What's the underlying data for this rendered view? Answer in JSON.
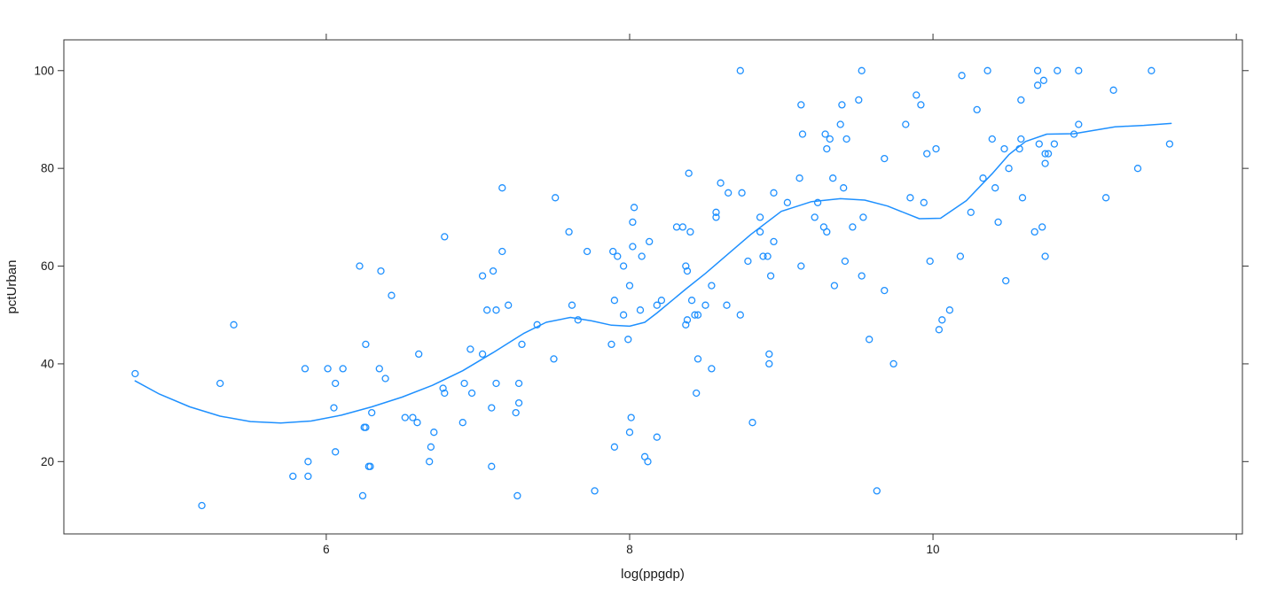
{
  "chart_data": {
    "type": "scatter",
    "title": "",
    "xlabel": "log(ppgdp)",
    "ylabel": "pctUrban",
    "xlim": [
      4.27,
      12.04
    ],
    "ylim": [
      5.2,
      106.3
    ],
    "grid": false,
    "legend": "none",
    "marker": {
      "shape": "open-circle",
      "color": "#1E90FF",
      "radius": 3.5
    },
    "smooth_line_color": "#1E90FF",
    "axis_color": "#333333",
    "xticks": [
      {
        "v": 6,
        "label": "6"
      },
      {
        "v": 8,
        "label": "8"
      },
      {
        "v": 10,
        "label": "10"
      },
      {
        "v": 12,
        "label": ""
      }
    ],
    "yticks": [
      {
        "v": 20,
        "label": "20"
      },
      {
        "v": 40,
        "label": "40"
      },
      {
        "v": 60,
        "label": "60"
      },
      {
        "v": 80,
        "label": "80"
      },
      {
        "v": 100,
        "label": "100"
      }
    ],
    "mirror_ticks_top_right": true,
    "points": [
      [
        4.74,
        38
      ],
      [
        5.18,
        11
      ],
      [
        5.3,
        36
      ],
      [
        5.39,
        48
      ],
      [
        5.78,
        17
      ],
      [
        5.86,
        39
      ],
      [
        5.88,
        17
      ],
      [
        5.88,
        20
      ],
      [
        6.01,
        39
      ],
      [
        6.05,
        31
      ],
      [
        6.06,
        22
      ],
      [
        6.06,
        36
      ],
      [
        6.11,
        39
      ],
      [
        6.22,
        60
      ],
      [
        6.24,
        13
      ],
      [
        6.25,
        27
      ],
      [
        6.26,
        27
      ],
      [
        6.26,
        44
      ],
      [
        6.28,
        19
      ],
      [
        6.29,
        19
      ],
      [
        6.3,
        30
      ],
      [
        6.35,
        39
      ],
      [
        6.36,
        59
      ],
      [
        6.39,
        37
      ],
      [
        6.43,
        54
      ],
      [
        6.52,
        29
      ],
      [
        6.57,
        29
      ],
      [
        6.6,
        28
      ],
      [
        6.61,
        42
      ],
      [
        6.68,
        20
      ],
      [
        6.69,
        23
      ],
      [
        6.71,
        26
      ],
      [
        6.77,
        35
      ],
      [
        6.78,
        34
      ],
      [
        6.78,
        66
      ],
      [
        6.9,
        28
      ],
      [
        6.91,
        36
      ],
      [
        6.95,
        43
      ],
      [
        6.96,
        34
      ],
      [
        7.03,
        42
      ],
      [
        7.03,
        58
      ],
      [
        7.06,
        51
      ],
      [
        7.09,
        19
      ],
      [
        7.09,
        31
      ],
      [
        7.1,
        59
      ],
      [
        7.12,
        36
      ],
      [
        7.12,
        51
      ],
      [
        7.16,
        63
      ],
      [
        7.16,
        76
      ],
      [
        7.2,
        52
      ],
      [
        7.25,
        30
      ],
      [
        7.26,
        13
      ],
      [
        7.27,
        32
      ],
      [
        7.27,
        36
      ],
      [
        7.29,
        44
      ],
      [
        7.39,
        48
      ],
      [
        7.5,
        41
      ],
      [
        7.51,
        74
      ],
      [
        7.6,
        67
      ],
      [
        7.62,
        52
      ],
      [
        7.66,
        49
      ],
      [
        7.72,
        63
      ],
      [
        7.77,
        14
      ],
      [
        7.88,
        44
      ],
      [
        7.89,
        63
      ],
      [
        7.9,
        23
      ],
      [
        7.9,
        53
      ],
      [
        7.92,
        62
      ],
      [
        7.96,
        50
      ],
      [
        7.96,
        60
      ],
      [
        7.99,
        45
      ],
      [
        8.0,
        26
      ],
      [
        8.0,
        56
      ],
      [
        8.01,
        29
      ],
      [
        8.02,
        64
      ],
      [
        8.02,
        69
      ],
      [
        8.03,
        72
      ],
      [
        8.07,
        51
      ],
      [
        8.08,
        62
      ],
      [
        8.1,
        21
      ],
      [
        8.12,
        20
      ],
      [
        8.13,
        65
      ],
      [
        8.18,
        25
      ],
      [
        8.18,
        52
      ],
      [
        8.21,
        53
      ],
      [
        8.31,
        68
      ],
      [
        8.35,
        68
      ],
      [
        8.37,
        48
      ],
      [
        8.37,
        60
      ],
      [
        8.38,
        49
      ],
      [
        8.38,
        59
      ],
      [
        8.39,
        79
      ],
      [
        8.4,
        67
      ],
      [
        8.41,
        53
      ],
      [
        8.43,
        50
      ],
      [
        8.44,
        34
      ],
      [
        8.45,
        50
      ],
      [
        8.45,
        41
      ],
      [
        8.5,
        52
      ],
      [
        8.54,
        39
      ],
      [
        8.54,
        56
      ],
      [
        8.57,
        70
      ],
      [
        8.57,
        71
      ],
      [
        8.6,
        77
      ],
      [
        8.64,
        52
      ],
      [
        8.65,
        75
      ],
      [
        8.73,
        50
      ],
      [
        8.73,
        100
      ],
      [
        8.74,
        75
      ],
      [
        8.78,
        61
      ],
      [
        8.81,
        28
      ],
      [
        8.86,
        67
      ],
      [
        8.86,
        70
      ],
      [
        8.88,
        62
      ],
      [
        8.91,
        62
      ],
      [
        8.92,
        40
      ],
      [
        8.92,
        42
      ],
      [
        8.93,
        58
      ],
      [
        8.95,
        65
      ],
      [
        8.95,
        75
      ],
      [
        9.04,
        73
      ],
      [
        9.12,
        78
      ],
      [
        9.13,
        60
      ],
      [
        9.13,
        93
      ],
      [
        9.14,
        87
      ],
      [
        9.22,
        70
      ],
      [
        9.24,
        73
      ],
      [
        9.28,
        68
      ],
      [
        9.29,
        87
      ],
      [
        9.3,
        67
      ],
      [
        9.3,
        84
      ],
      [
        9.32,
        86
      ],
      [
        9.34,
        78
      ],
      [
        9.35,
        56
      ],
      [
        9.39,
        89
      ],
      [
        9.4,
        93
      ],
      [
        9.41,
        76
      ],
      [
        9.42,
        61
      ],
      [
        9.43,
        86
      ],
      [
        9.47,
        68
      ],
      [
        9.51,
        94
      ],
      [
        9.53,
        58
      ],
      [
        9.53,
        100
      ],
      [
        9.54,
        70
      ],
      [
        9.58,
        45
      ],
      [
        9.63,
        14
      ],
      [
        9.68,
        55
      ],
      [
        9.68,
        82
      ],
      [
        9.74,
        40
      ],
      [
        9.82,
        89
      ],
      [
        9.85,
        74
      ],
      [
        9.89,
        95
      ],
      [
        9.92,
        93
      ],
      [
        9.94,
        73
      ],
      [
        9.96,
        83
      ],
      [
        9.98,
        61
      ],
      [
        10.02,
        84
      ],
      [
        10.04,
        47
      ],
      [
        10.06,
        49
      ],
      [
        10.11,
        51
      ],
      [
        10.18,
        62
      ],
      [
        10.19,
        99
      ],
      [
        10.25,
        71
      ],
      [
        10.29,
        92
      ],
      [
        10.33,
        78
      ],
      [
        10.36,
        100
      ],
      [
        10.39,
        86
      ],
      [
        10.41,
        76
      ],
      [
        10.43,
        69
      ],
      [
        10.47,
        84
      ],
      [
        10.48,
        57
      ],
      [
        10.5,
        80
      ],
      [
        10.57,
        84
      ],
      [
        10.58,
        86
      ],
      [
        10.58,
        94
      ],
      [
        10.59,
        74
      ],
      [
        10.67,
        67
      ],
      [
        10.69,
        97
      ],
      [
        10.69,
        100
      ],
      [
        10.7,
        85
      ],
      [
        10.72,
        68
      ],
      [
        10.73,
        98
      ],
      [
        10.74,
        62
      ],
      [
        10.74,
        81
      ],
      [
        10.74,
        83
      ],
      [
        10.76,
        83
      ],
      [
        10.8,
        85
      ],
      [
        10.82,
        100
      ],
      [
        10.93,
        87
      ],
      [
        10.96,
        89
      ],
      [
        10.96,
        100
      ],
      [
        11.14,
        74
      ],
      [
        11.19,
        96
      ],
      [
        11.35,
        80
      ],
      [
        11.44,
        100
      ],
      [
        11.56,
        85
      ]
    ],
    "smooth_curve": [
      [
        4.74,
        36.5
      ],
      [
        4.9,
        33.8
      ],
      [
        5.1,
        31.2
      ],
      [
        5.3,
        29.3
      ],
      [
        5.5,
        28.2
      ],
      [
        5.7,
        27.9
      ],
      [
        5.9,
        28.3
      ],
      [
        6.1,
        29.5
      ],
      [
        6.3,
        31.2
      ],
      [
        6.5,
        33.2
      ],
      [
        6.7,
        35.6
      ],
      [
        6.9,
        38.6
      ],
      [
        7.1,
        42.3
      ],
      [
        7.3,
        46.2
      ],
      [
        7.45,
        48.5
      ],
      [
        7.61,
        49.5
      ],
      [
        7.75,
        48.8
      ],
      [
        7.88,
        47.9
      ],
      [
        8.0,
        47.7
      ],
      [
        8.1,
        48.5
      ],
      [
        8.18,
        50.4
      ],
      [
        8.37,
        55.3
      ],
      [
        8.5,
        58.5
      ],
      [
        8.65,
        62.5
      ],
      [
        8.8,
        66.5
      ],
      [
        9.0,
        71.2
      ],
      [
        9.2,
        73.2
      ],
      [
        9.39,
        73.8
      ],
      [
        9.55,
        73.5
      ],
      [
        9.7,
        72.3
      ],
      [
        9.91,
        69.7
      ],
      [
        10.05,
        69.8
      ],
      [
        10.22,
        73.4
      ],
      [
        10.39,
        78.9
      ],
      [
        10.5,
        82.8
      ],
      [
        10.61,
        85.5
      ],
      [
        10.75,
        87.0
      ],
      [
        10.93,
        87.1
      ],
      [
        11.2,
        88.5
      ],
      [
        11.39,
        88.8
      ],
      [
        11.57,
        89.2
      ]
    ]
  }
}
